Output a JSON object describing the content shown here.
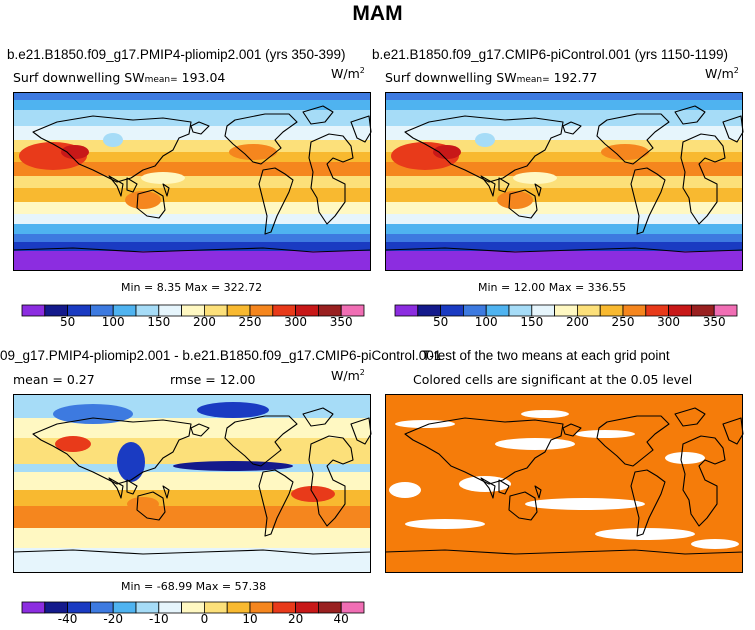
{
  "title": "MAM",
  "panels": [
    {
      "run_title": "b.e21.B1850.f09_g17.PMIP4-pliomip2.001 (yrs 350-399)",
      "variable_label": "Surf downwelling SW",
      "mean_label": "mean=",
      "mean_value": "193.04",
      "units": "W/m",
      "units_exp": "2",
      "min_max_text": "Min =   8.35 Max = 322.72"
    },
    {
      "run_title": "b.e21.B1850.f09_g17.CMIP6-piControl.001 (yrs 1150-1199)",
      "variable_label": "Surf downwelling SW",
      "mean_label": "mean=",
      "mean_value": "192.77",
      "units": "W/m",
      "units_exp": "2",
      "min_max_text": "Min =  12.00 Max = 336.55"
    },
    {
      "run_title": "09_g17.PMIP4-pliomip2.001 - b.e21.B1850.f09_g17.CMIP6-piControl.001",
      "mean_text": "mean =    0.27",
      "rmse_text": "rmse =   12.00",
      "units": "W/m",
      "units_exp": "2",
      "min_max_text": "Min = -68.99 Max =  57.38"
    },
    {
      "run_title": "T-test of the two means at each grid point",
      "subtitle": "Colored cells are significant at the 0.05 level"
    }
  ],
  "colorbars": {
    "absolute": {
      "colors": [
        "#8c2de0",
        "#141a8c",
        "#1a3bc2",
        "#3d7ae0",
        "#4fb3f0",
        "#a6dcf7",
        "#e6f5fc",
        "#fff8c2",
        "#fce07a",
        "#f8b930",
        "#f5861e",
        "#e83a1a",
        "#c81818",
        "#992020",
        "#f06eb4"
      ],
      "labels": [
        "50",
        "100",
        "150",
        "200",
        "250",
        "300",
        "350"
      ]
    },
    "difference": {
      "colors": [
        "#8c2de0",
        "#141a8c",
        "#1a3bc2",
        "#3d7ae0",
        "#4fb3f0",
        "#a6dcf7",
        "#e6f5fc",
        "#fff8c2",
        "#fce07a",
        "#f8b930",
        "#f5861e",
        "#e83a1a",
        "#c81818",
        "#992020",
        "#f06eb4"
      ],
      "labels": [
        "-40",
        "-20",
        "-10",
        "0",
        "10",
        "20",
        "40"
      ]
    }
  },
  "colors": {
    "significance": "#f57c0a",
    "coast": "#000000"
  }
}
